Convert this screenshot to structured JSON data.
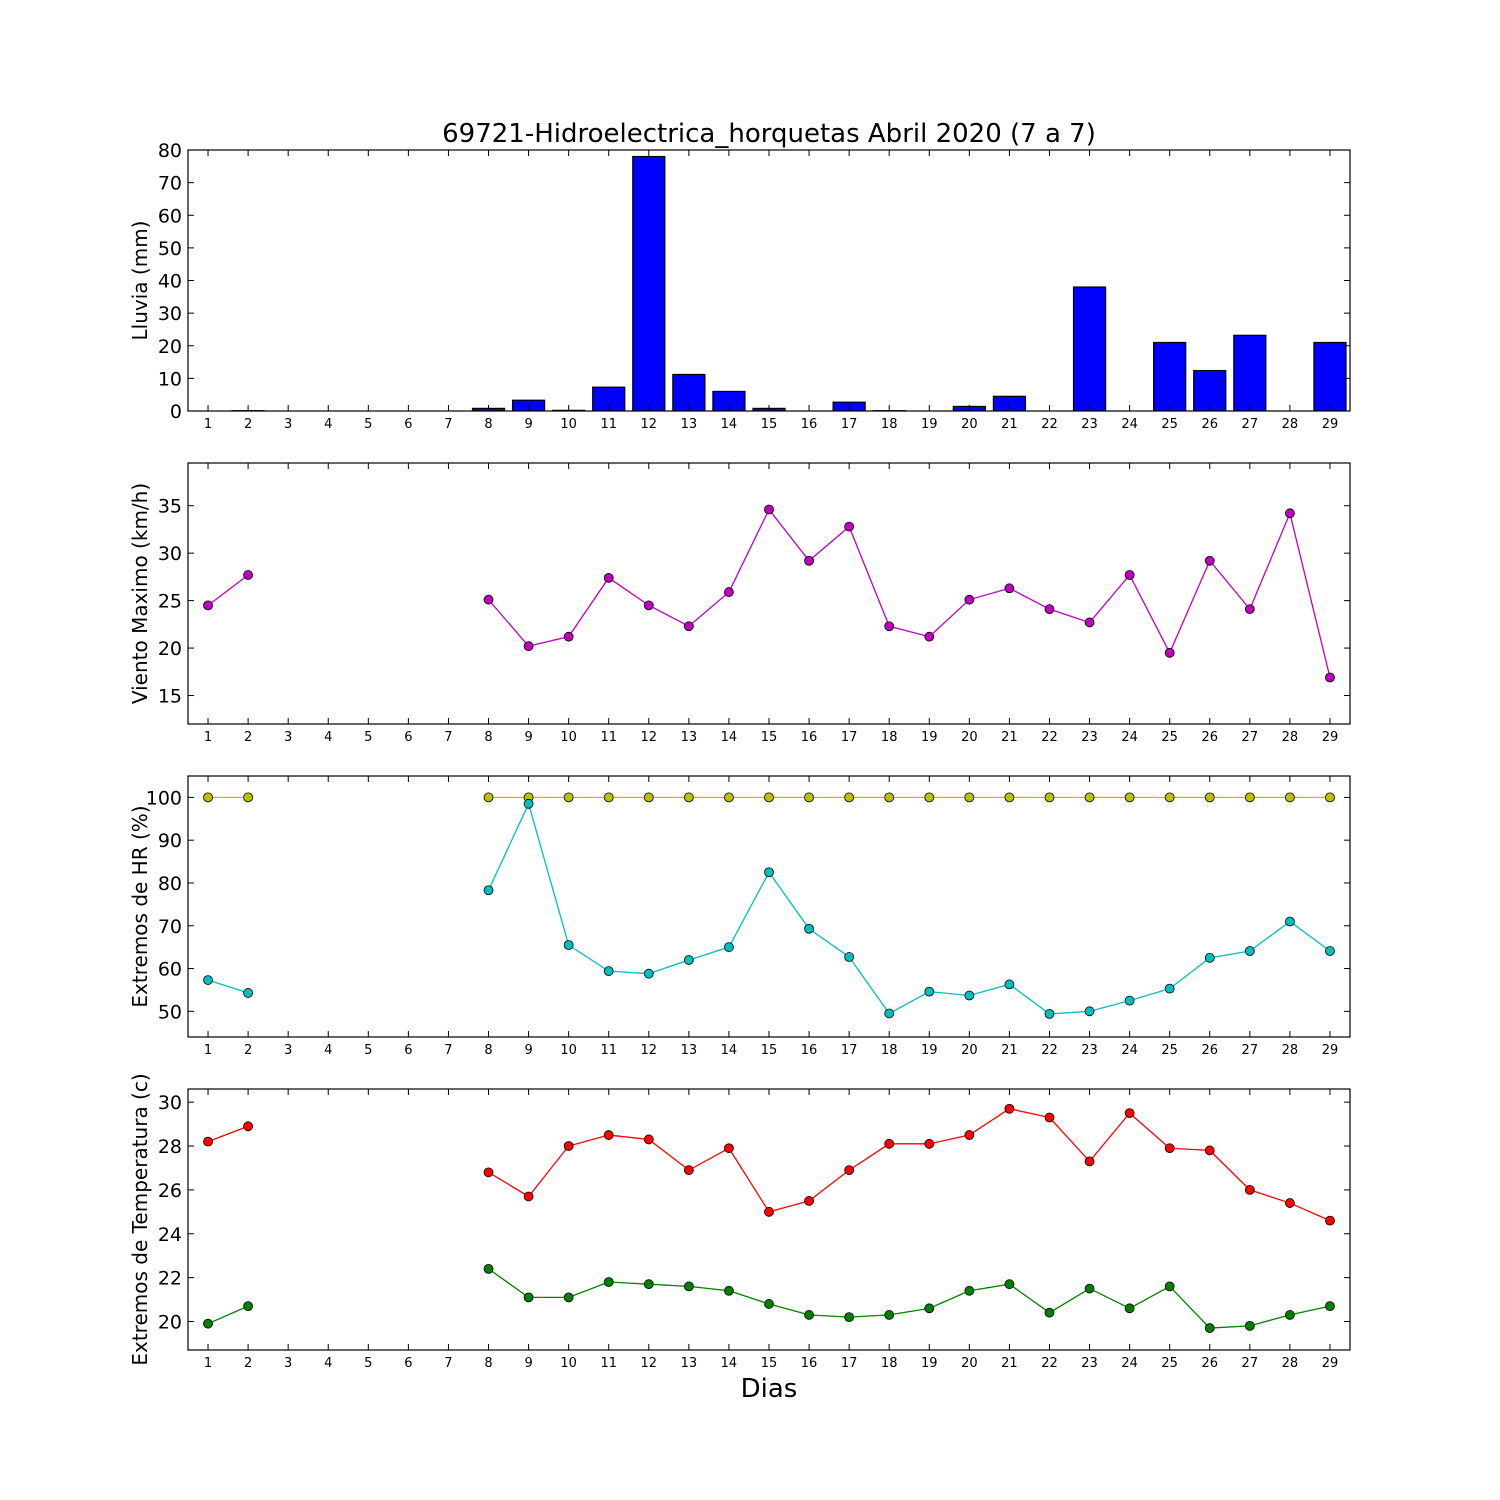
{
  "figure": {
    "title": "69721-Hidroelectrica_horquetas Abril 2020  (7 a 7)",
    "xlabel": "Dias"
  },
  "chart_data": [
    {
      "type": "bar",
      "ylabel": "Lluvia (mm)",
      "categories": [
        1,
        2,
        3,
        4,
        5,
        6,
        7,
        8,
        9,
        10,
        11,
        12,
        13,
        14,
        15,
        16,
        17,
        18,
        19,
        20,
        21,
        22,
        23,
        24,
        25,
        26,
        27,
        28,
        29
      ],
      "ylim": [
        0,
        80
      ],
      "yticks": [
        0,
        10,
        20,
        30,
        40,
        50,
        60,
        70,
        80
      ],
      "colors": {
        "bar": "#0000ff"
      },
      "values": [
        0,
        0.1,
        0,
        0,
        0,
        0,
        0,
        0.8,
        3.3,
        0.2,
        7.3,
        78,
        11.2,
        6,
        0.8,
        0,
        2.7,
        0.1,
        0,
        1.4,
        4.5,
        0,
        38,
        0,
        21,
        12.4,
        23.2,
        0,
        21
      ]
    },
    {
      "type": "line",
      "ylabel": "Viento Maximo (km/h)",
      "x": [
        1,
        2,
        3,
        4,
        5,
        6,
        7,
        8,
        9,
        10,
        11,
        12,
        13,
        14,
        15,
        16,
        17,
        18,
        19,
        20,
        21,
        22,
        23,
        24,
        25,
        26,
        27,
        28,
        29
      ],
      "ylim": [
        12,
        39.5
      ],
      "yticks": [
        15,
        20,
        25,
        30,
        35
      ],
      "series": [
        {
          "color": "#bf00bf",
          "values": [
            24.5,
            27.7,
            null,
            null,
            null,
            null,
            null,
            25.1,
            20.2,
            21.2,
            27.4,
            24.5,
            22.3,
            25.9,
            34.6,
            29.2,
            32.8,
            22.3,
            21.2,
            25.1,
            26.3,
            24.1,
            22.7,
            27.7,
            19.5,
            29.2,
            24.1,
            34.2,
            16.9
          ]
        }
      ]
    },
    {
      "type": "line",
      "ylabel": "Extremos de HR (%)",
      "x": [
        1,
        2,
        3,
        4,
        5,
        6,
        7,
        8,
        9,
        10,
        11,
        12,
        13,
        14,
        15,
        16,
        17,
        18,
        19,
        20,
        21,
        22,
        23,
        24,
        25,
        26,
        27,
        28,
        29
      ],
      "ylim": [
        44,
        105
      ],
      "yticks": [
        50,
        60,
        70,
        80,
        90,
        100
      ],
      "series": [
        {
          "color": "#bfbf00",
          "values": [
            100,
            100,
            null,
            null,
            null,
            null,
            null,
            100,
            100,
            100,
            100,
            100,
            100,
            100,
            100,
            100,
            100,
            100,
            100,
            100,
            100,
            100,
            100,
            100,
            100,
            100,
            100,
            100,
            100
          ]
        },
        {
          "color": "#00bfbf",
          "values": [
            57.3,
            54.3,
            null,
            null,
            null,
            null,
            null,
            78.3,
            98.5,
            65.5,
            59.4,
            58.8,
            62,
            65,
            82.5,
            69.3,
            62.7,
            49.5,
            54.6,
            53.7,
            56.3,
            49.4,
            50,
            52.5,
            55.3,
            62.5,
            64.1,
            71,
            64.1
          ]
        }
      ]
    },
    {
      "type": "line",
      "ylabel": "Extremos de Temperatura (c)",
      "x": [
        1,
        2,
        3,
        4,
        5,
        6,
        7,
        8,
        9,
        10,
        11,
        12,
        13,
        14,
        15,
        16,
        17,
        18,
        19,
        20,
        21,
        22,
        23,
        24,
        25,
        26,
        27,
        28,
        29
      ],
      "ylim": [
        18.7,
        30.6
      ],
      "yticks": [
        20,
        22,
        24,
        26,
        28,
        30
      ],
      "series": [
        {
          "color": "#ff0000",
          "values": [
            28.2,
            28.9,
            null,
            null,
            null,
            null,
            null,
            26.8,
            25.7,
            28,
            28.5,
            28.3,
            26.9,
            27.9,
            25,
            25.5,
            26.9,
            28.1,
            28.1,
            28.5,
            29.7,
            29.3,
            27.3,
            29.5,
            27.9,
            27.8,
            26,
            25.4,
            24.6
          ]
        },
        {
          "color": "#008000",
          "values": [
            19.9,
            20.7,
            null,
            null,
            null,
            null,
            null,
            22.4,
            21.1,
            21.1,
            21.8,
            21.7,
            21.6,
            21.4,
            20.8,
            20.3,
            20.2,
            20.3,
            20.6,
            21.4,
            21.7,
            20.4,
            21.5,
            20.6,
            21.6,
            19.7,
            19.8,
            20.3,
            20.7
          ]
        }
      ]
    }
  ]
}
